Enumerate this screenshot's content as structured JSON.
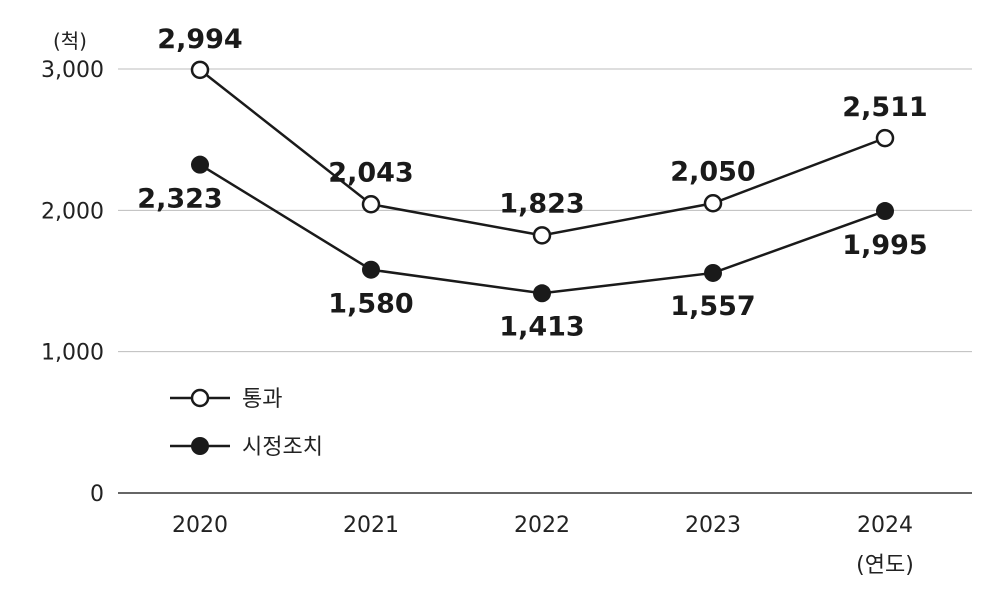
{
  "chart_data": {
    "type": "line",
    "y_unit_label": "(척)",
    "x_unit_label": "(연도)",
    "categories": [
      "2020",
      "2021",
      "2022",
      "2023",
      "2024"
    ],
    "y_ticks": [
      "0",
      "1,000",
      "2,000",
      "3,000"
    ],
    "y_tick_values": [
      0,
      1000,
      2000,
      3000
    ],
    "ylim": [
      0,
      3000
    ],
    "grid": true,
    "legend_position": "bottom-left",
    "series": [
      {
        "name": "통과",
        "marker": "open-circle",
        "color": "#1a1a1a",
        "values": [
          2994,
          2043,
          1823,
          2050,
          2511
        ],
        "labels": [
          "2,994",
          "2,043",
          "1,823",
          "2,050",
          "2,511"
        ],
        "label_side": "above"
      },
      {
        "name": "시정조치",
        "marker": "filled-circle",
        "color": "#1a1a1a",
        "values": [
          2323,
          1580,
          1413,
          1557,
          1995
        ],
        "labels": [
          "2,323",
          "1,580",
          "1,413",
          "1,557",
          "1,995"
        ],
        "label_side": "below"
      }
    ]
  }
}
